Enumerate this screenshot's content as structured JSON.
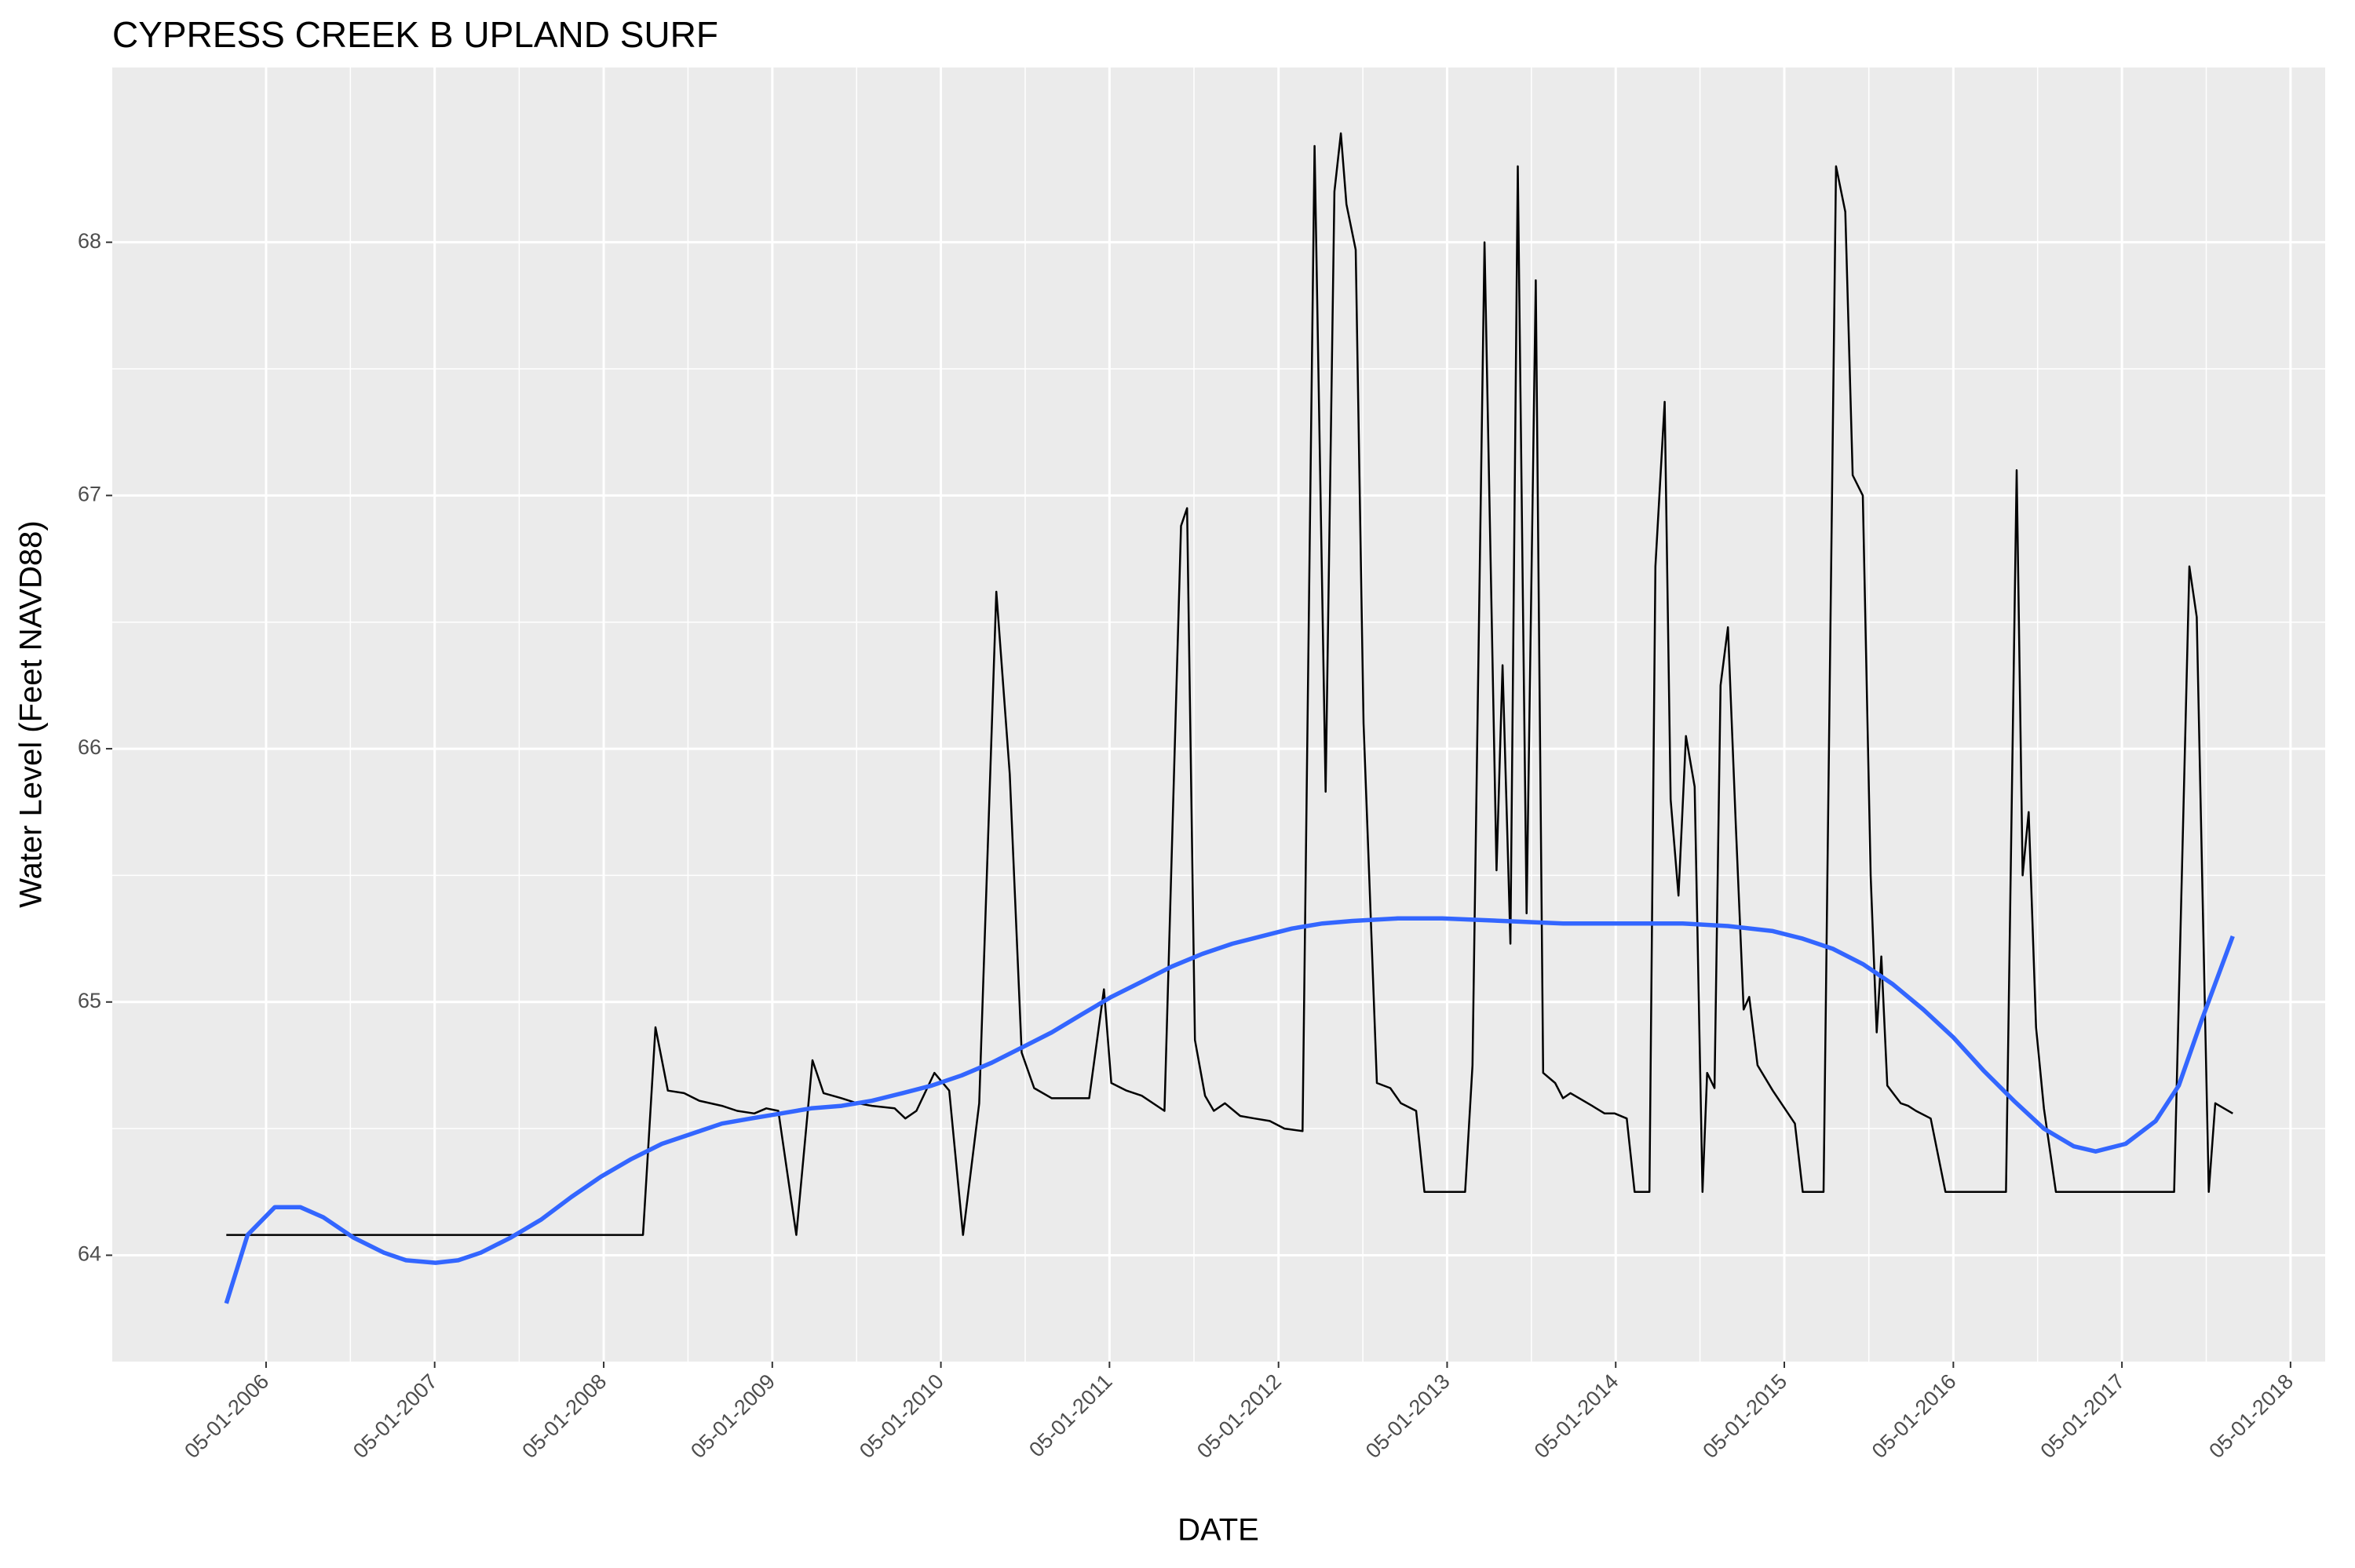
{
  "chart_data": {
    "type": "line",
    "title": "CYPRESS CREEK B UPLAND SURF",
    "x_label": "DATE",
    "y_label": "Water Level (Feet NAVD88)",
    "xlim": [
      "2005-06-02",
      "2018-07-15"
    ],
    "ylim": [
      63.58,
      68.69
    ],
    "xticks": [
      {
        "value": "2006-05-01",
        "label": "05-01-2006"
      },
      {
        "value": "2007-05-01",
        "label": "05-01-2007"
      },
      {
        "value": "2008-05-01",
        "label": "05-01-2008"
      },
      {
        "value": "2009-05-01",
        "label": "05-01-2009"
      },
      {
        "value": "2010-05-01",
        "label": "05-01-2010"
      },
      {
        "value": "2011-05-01",
        "label": "05-01-2011"
      },
      {
        "value": "2012-05-01",
        "label": "05-01-2012"
      },
      {
        "value": "2013-05-01",
        "label": "05-01-2013"
      },
      {
        "value": "2014-05-01",
        "label": "05-01-2014"
      },
      {
        "value": "2015-05-01",
        "label": "05-01-2015"
      },
      {
        "value": "2016-05-01",
        "label": "05-01-2016"
      },
      {
        "value": "2017-05-01",
        "label": "05-01-2017"
      },
      {
        "value": "2018-05-01",
        "label": "05-01-2018"
      }
    ],
    "yticks": [
      64,
      65,
      66,
      67,
      68
    ],
    "grid": true,
    "series": [
      {
        "color": "#000000",
        "x": [
          "2006-02-04",
          "2008-07-25",
          "2008-08-21",
          "2008-09-17",
          "2008-10-22",
          "2008-11-24",
          "2009-01-12",
          "2009-02-14",
          "2009-03-23",
          "2009-04-18",
          "2009-05-14",
          "2009-06-22",
          "2009-07-27",
          "2009-08-20",
          "2009-09-28",
          "2009-11-01",
          "2009-12-03",
          "2010-01-21",
          "2010-02-13",
          "2010-03-09",
          "2010-04-17",
          "2010-05-19",
          "2010-06-18",
          "2010-07-23",
          "2010-08-29",
          "2010-09-27",
          "2010-10-23",
          "2010-11-19",
          "2010-12-27",
          "2011-03-18",
          "2011-04-19",
          "2011-05-05",
          "2011-06-07",
          "2011-07-10",
          "2011-08-28",
          "2011-10-03",
          "2011-10-16",
          "2011-11-02",
          "2011-11-24",
          "2011-12-13",
          "2012-01-06",
          "2012-02-08",
          "2012-03-10",
          "2012-04-12",
          "2012-05-14",
          "2012-06-22",
          "2012-07-18",
          "2012-08-11",
          "2012-08-30",
          "2012-09-13",
          "2012-09-25",
          "2012-10-15",
          "2012-11-01",
          "2012-11-30",
          "2012-12-29",
          "2013-01-21",
          "2013-02-23",
          "2013-03-13",
          "2013-06-09",
          "2013-06-25",
          "2013-07-21",
          "2013-08-16",
          "2013-08-29",
          "2013-09-15",
          "2013-10-01",
          "2013-10-20",
          "2013-11-09",
          "2013-11-25",
          "2013-12-21",
          "2014-01-07",
          "2014-01-23",
          "2014-03-11",
          "2014-04-07",
          "2014-04-29",
          "2014-05-25",
          "2014-06-11",
          "2014-07-13",
          "2014-07-26",
          "2014-08-15",
          "2014-08-28",
          "2014-09-14",
          "2014-09-30",
          "2014-10-19",
          "2014-11-05",
          "2014-11-15",
          "2014-12-01",
          "2014-12-14",
          "2014-12-30",
          "2015-01-16",
          "2015-02-02",
          "2015-02-14",
          "2015-03-04",
          "2015-04-06",
          "2015-05-24",
          "2015-06-10",
          "2015-07-25",
          "2015-08-21",
          "2015-09-10",
          "2015-09-26",
          "2015-10-18",
          "2015-11-04",
          "2015-11-17",
          "2015-11-27",
          "2015-12-10",
          "2016-01-08",
          "2016-01-24",
          "2016-02-10",
          "2016-03-13",
          "2016-04-14",
          "2016-08-23",
          "2016-09-15",
          "2016-09-28",
          "2016-10-11",
          "2016-10-27",
          "2016-11-13",
          "2016-12-09",
          "2017-08-22",
          "2017-09-24",
          "2017-10-10",
          "2017-11-05",
          "2017-11-19",
          "2017-12-08",
          "2017-12-27"
        ],
        "values": [
          64.08,
          64.08,
          64.9,
          64.65,
          64.64,
          64.61,
          64.59,
          64.57,
          64.56,
          64.58,
          64.57,
          64.08,
          64.77,
          64.64,
          64.62,
          64.6,
          64.59,
          64.58,
          64.54,
          64.57,
          64.72,
          64.65,
          64.08,
          64.6,
          66.62,
          65.9,
          64.8,
          64.66,
          64.62,
          64.62,
          65.05,
          64.68,
          64.65,
          64.63,
          64.57,
          66.88,
          66.95,
          64.85,
          64.63,
          64.57,
          64.6,
          64.55,
          64.54,
          64.53,
          64.5,
          64.49,
          68.38,
          65.83,
          68.2,
          68.43,
          68.15,
          67.97,
          66.1,
          64.68,
          64.66,
          64.6,
          64.57,
          64.25,
          64.25,
          64.75,
          68.0,
          65.52,
          66.33,
          65.23,
          68.3,
          65.35,
          67.85,
          64.72,
          64.68,
          64.62,
          64.64,
          64.59,
          64.56,
          64.56,
          64.54,
          64.25,
          64.25,
          66.72,
          67.37,
          65.8,
          65.42,
          66.05,
          65.85,
          64.25,
          64.72,
          64.66,
          66.25,
          66.48,
          65.7,
          64.97,
          65.02,
          64.75,
          64.65,
          64.52,
          64.25,
          64.25,
          68.3,
          68.12,
          67.08,
          67.0,
          65.5,
          64.88,
          65.18,
          64.67,
          64.6,
          64.59,
          64.57,
          64.54,
          64.25,
          64.25,
          67.1,
          65.5,
          65.75,
          64.9,
          64.58,
          64.25,
          64.25,
          66.72,
          66.52,
          64.25,
          64.6,
          64.58,
          64.56
        ]
      },
      {
        "color": "#3366ff",
        "x": [
          "2006-02-04",
          "2006-03-22",
          "2006-05-20",
          "2006-07-14",
          "2006-09-02",
          "2006-11-06",
          "2007-01-11",
          "2007-02-28",
          "2007-05-03",
          "2007-06-21",
          "2007-08-09",
          "2007-10-13",
          "2007-12-17",
          "2008-02-21",
          "2008-04-25",
          "2008-06-30",
          "2008-09-04",
          "2008-11-08",
          "2009-01-12",
          "2009-03-16",
          "2009-05-20",
          "2009-07-24",
          "2009-09-28",
          "2009-12-03",
          "2010-02-07",
          "2010-04-11",
          "2010-06-15",
          "2010-08-19",
          "2010-10-23",
          "2010-12-27",
          "2011-03-01",
          "2011-05-05",
          "2011-07-10",
          "2011-09-13",
          "2011-11-18",
          "2012-01-22",
          "2012-03-26",
          "2012-05-30",
          "2012-08-04",
          "2012-10-08",
          "2013-01-14",
          "2013-04-20",
          "2013-08-29",
          "2014-01-07",
          "2014-05-15",
          "2014-09-23",
          "2014-12-30",
          "2015-04-06",
          "2015-06-10",
          "2015-08-14",
          "2015-10-18",
          "2015-12-22",
          "2016-02-26",
          "2016-05-01",
          "2016-07-05",
          "2016-09-09",
          "2016-11-13",
          "2017-01-17",
          "2017-03-05",
          "2017-05-09",
          "2017-07-13",
          "2017-09-01",
          "2017-10-19",
          "2017-12-27"
        ],
        "values": [
          63.81,
          64.08,
          64.19,
          64.19,
          64.15,
          64.07,
          64.01,
          63.98,
          63.97,
          63.98,
          64.01,
          64.07,
          64.14,
          64.23,
          64.31,
          64.38,
          64.44,
          64.48,
          64.52,
          64.54,
          64.56,
          64.58,
          64.59,
          64.61,
          64.64,
          64.67,
          64.71,
          64.76,
          64.82,
          64.88,
          64.95,
          65.02,
          65.08,
          65.14,
          65.19,
          65.23,
          65.26,
          65.29,
          65.31,
          65.32,
          65.33,
          65.33,
          65.32,
          65.31,
          65.31,
          65.31,
          65.3,
          65.28,
          65.25,
          65.21,
          65.15,
          65.07,
          64.97,
          64.86,
          64.73,
          64.61,
          64.5,
          64.43,
          64.41,
          64.44,
          64.53,
          64.67,
          64.92,
          65.26
        ]
      }
    ]
  }
}
